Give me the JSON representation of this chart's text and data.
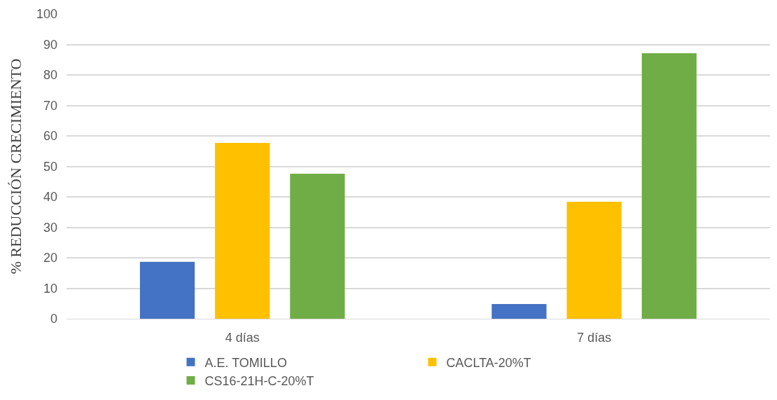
{
  "chart_data": {
    "type": "bar",
    "ylabel": "% REDUCCIÓN CRECIMIENTO",
    "categories": [
      "4 días",
      "7 días"
    ],
    "series": [
      {
        "name": "A.E. TOMILLO",
        "color": "#4472c4",
        "values": [
          18.7,
          4.8
        ]
      },
      {
        "name": "CACLTA-20%T",
        "color": "#ffc000",
        "values": [
          57.7,
          38.4
        ]
      },
      {
        "name": "CS16-21H-C-20%T",
        "color": "#70ad47",
        "values": [
          47.6,
          87.1
        ]
      }
    ],
    "ylim": [
      0,
      100
    ],
    "yticks": [
      0,
      10,
      20,
      30,
      40,
      50,
      60,
      70,
      80,
      90,
      100
    ],
    "grid": "y",
    "legend": "bottom"
  }
}
